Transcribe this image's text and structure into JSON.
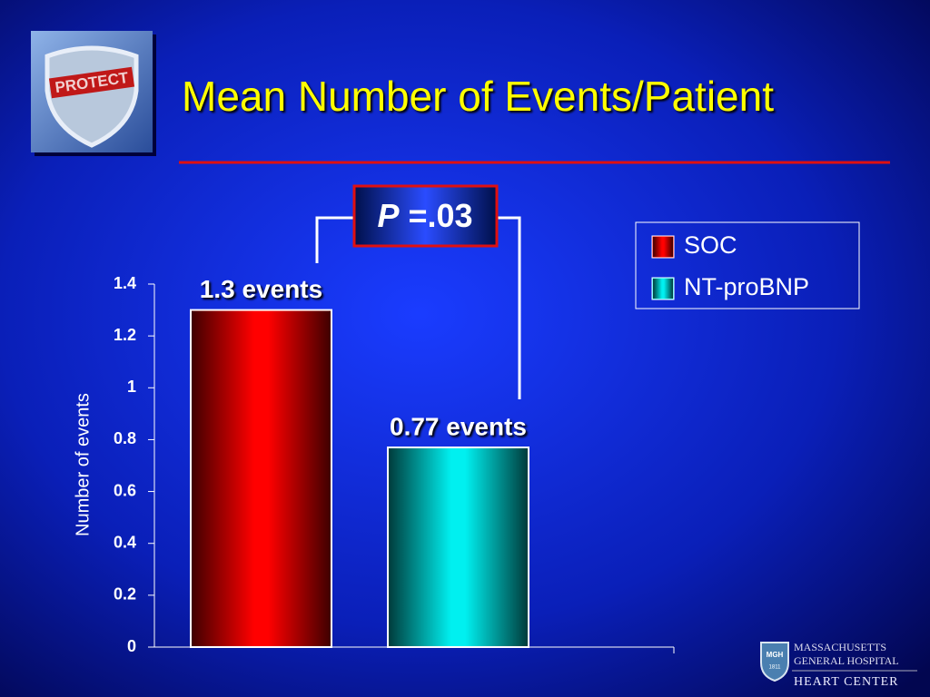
{
  "chart_data": {
    "type": "bar",
    "title": "Mean Number of Events/Patient",
    "ylabel": "Number of events",
    "annotation": {
      "symbol": "P",
      "text": "=.03"
    },
    "categories": [
      null
    ],
    "series": [
      {
        "name": "SOC",
        "color": "#ff0000",
        "values": [
          1.3
        ],
        "value_labels": [
          "1.3 events"
        ]
      },
      {
        "name": "NT-proBNP",
        "color": "#00f0f0",
        "values": [
          0.77
        ],
        "value_labels": [
          "0.77 events"
        ]
      }
    ],
    "ylim": [
      0,
      1.4
    ],
    "yticks": [
      0,
      0.2,
      0.4,
      0.6,
      0.8,
      1,
      1.2,
      1.4
    ],
    "legend": "upper right"
  },
  "logos": {
    "study": "PROTECT",
    "hospital_line1": "MASSACHUSETTS",
    "hospital_line2": "GENERAL HOSPITAL",
    "department": "HEART CENTER",
    "badge": "MGH",
    "badge_year": "1811"
  }
}
